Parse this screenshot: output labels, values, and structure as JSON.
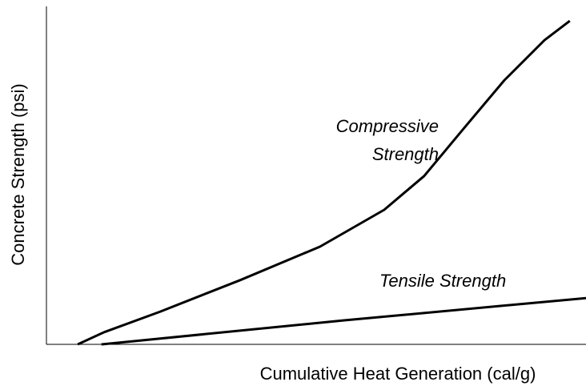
{
  "chart_data": {
    "type": "line",
    "xlabel": "Cumulative Heat Generation (cal/g)",
    "ylabel": "Concrete Strength (psi)",
    "xlim": [
      0,
      100
    ],
    "ylim": [
      0,
      100
    ],
    "series": [
      {
        "name": "Compressive Strength",
        "color": "#000000",
        "x": [
          5.8,
          10.7,
          21.1,
          35.9,
          50.7,
          62.6,
          70,
          77.4,
          84.9,
          92.3,
          97
        ],
        "values": [
          0,
          3.6,
          9.7,
          19,
          28.9,
          39.8,
          49.8,
          64,
          78.2,
          90,
          95.7
        ]
      },
      {
        "name": "Tensile Strength",
        "color": "#000000",
        "x": [
          10.2,
          55.2,
          100
        ],
        "values": [
          0,
          7.1,
          13.7
        ]
      }
    ]
  }
}
